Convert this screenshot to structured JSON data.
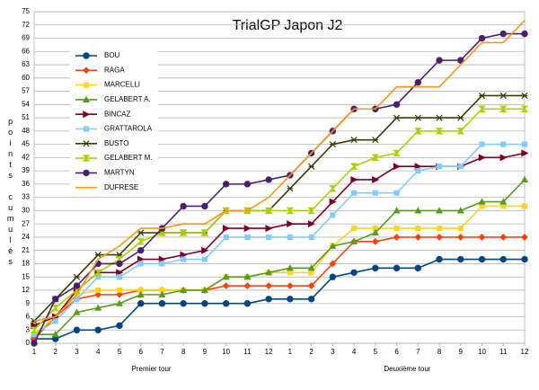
{
  "chart_data": {
    "type": "line",
    "title": "TrialGP Japon J2",
    "y_label": "points cumulés",
    "categories": [
      "1",
      "2",
      "3",
      "4",
      "5",
      "6",
      "7",
      "8",
      "9",
      "10",
      "11",
      "12",
      "1",
      "2",
      "3",
      "4",
      "5",
      "6",
      "7",
      "8",
      "9",
      "10",
      "11",
      "12"
    ],
    "x_groups": [
      "Premier tour",
      "Deuxième tour"
    ],
    "ylim": [
      0,
      75
    ],
    "yticks": [
      0,
      3,
      6,
      9,
      12,
      15,
      18,
      21,
      24,
      27,
      30,
      33,
      36,
      39,
      42,
      45,
      48,
      51,
      54,
      57,
      60,
      63,
      66,
      69,
      72,
      75
    ],
    "grid": true,
    "series": [
      {
        "name": "BOU",
        "color": "#004586",
        "marker": "circle",
        "values": [
          1,
          1,
          3,
          3,
          4,
          9,
          9,
          9,
          9,
          9,
          9,
          10,
          10,
          10,
          15,
          16,
          17,
          17,
          17,
          19,
          19,
          19,
          19,
          19
        ]
      },
      {
        "name": "RAGA",
        "color": "#ff420e",
        "marker": "diamond",
        "values": [
          1,
          6,
          10,
          11,
          11,
          12,
          12,
          12,
          12,
          13,
          13,
          13,
          13,
          13,
          18,
          23,
          23,
          24,
          24,
          24,
          24,
          24,
          24,
          24
        ]
      },
      {
        "name": "MARCELLI",
        "color": "#ffd320",
        "marker": "square",
        "values": [
          2,
          6,
          11,
          12,
          12,
          12,
          12,
          12,
          12,
          15,
          15,
          16,
          16,
          16,
          22,
          26,
          26,
          26,
          26,
          26,
          26,
          31,
          31,
          31
        ]
      },
      {
        "name": "GELABERT A.",
        "color": "#579d1c",
        "marker": "triangle",
        "values": [
          2,
          2,
          7,
          8,
          9,
          11,
          11,
          12,
          12,
          15,
          15,
          16,
          17,
          17,
          22,
          23,
          25,
          30,
          30,
          30,
          30,
          32,
          32,
          37
        ]
      },
      {
        "name": "BINCAZ",
        "color": "#7e0021",
        "marker": "arrow",
        "values": [
          4,
          6,
          12,
          16,
          16,
          19,
          19,
          20,
          21,
          26,
          26,
          26,
          27,
          27,
          32,
          37,
          37,
          40,
          40,
          40,
          40,
          42,
          42,
          43
        ]
      },
      {
        "name": "GRATTAROLA",
        "color": "#83caff",
        "marker": "square",
        "values": [
          2,
          5,
          10,
          15,
          15,
          18,
          18,
          19,
          19,
          24,
          24,
          24,
          24,
          24,
          29,
          34,
          34,
          34,
          39,
          40,
          40,
          45,
          45,
          45
        ]
      },
      {
        "name": "BUSTO",
        "color": "#314004",
        "marker": "cross",
        "values": [
          5,
          10,
          15,
          20,
          20,
          25,
          25,
          25,
          25,
          30,
          30,
          30,
          35,
          40,
          45,
          46,
          46,
          51,
          51,
          51,
          51,
          56,
          56,
          56
        ]
      },
      {
        "name": "GELABERT M.",
        "color": "#aecf00",
        "marker": "hourglass",
        "values": [
          3,
          8,
          12,
          16,
          19,
          23,
          25,
          25,
          25,
          30,
          30,
          30,
          30,
          30,
          35,
          40,
          42,
          43,
          48,
          48,
          48,
          53,
          53,
          53
        ]
      },
      {
        "name": "MARTYN",
        "color": "#4b1f6f",
        "marker": "circle",
        "values": [
          0,
          10,
          13,
          18,
          18,
          21,
          26,
          31,
          31,
          36,
          36,
          37,
          38,
          43,
          48,
          53,
          53,
          54,
          59,
          64,
          64,
          69,
          70,
          70
        ]
      },
      {
        "name": "DUFRESE",
        "color": "#ff950e",
        "marker": "none",
        "values": [
          5,
          6,
          11,
          19,
          22,
          26,
          26,
          27,
          27,
          30,
          30,
          33,
          38,
          43,
          48,
          53,
          53,
          58,
          58,
          58,
          63,
          68,
          68,
          73
        ]
      }
    ]
  }
}
